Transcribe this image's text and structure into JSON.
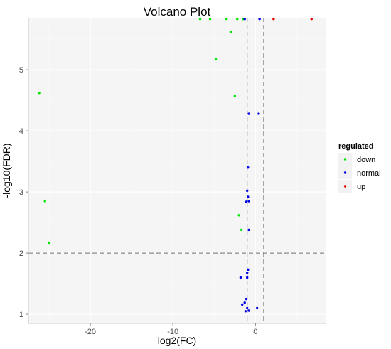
{
  "chart_data": {
    "type": "scatter",
    "title": "Volcano Plot",
    "xlabel": "log2(FC)",
    "ylabel": "-log10(FDR)",
    "xlim": [
      -27.5,
      8.5
    ],
    "ylim": [
      0.85,
      5.85
    ],
    "xticks": [
      -20,
      -10,
      0
    ],
    "yticks": [
      1,
      2,
      3,
      4,
      5
    ],
    "grid": true,
    "background": "#f5f5f5",
    "gridline_color": "#ffffff",
    "threshold_lines": {
      "x": [
        -1,
        1
      ],
      "y": 2
    },
    "legend": {
      "title": "regulated",
      "placement": "right",
      "entries": [
        "down",
        "normal",
        "up"
      ]
    },
    "series": [
      {
        "name": "down",
        "color": "#00e600",
        "points": [
          [
            -26.2,
            4.62
          ],
          [
            -25.5,
            2.85
          ],
          [
            -25,
            2.17
          ],
          [
            -6.7,
            5.83
          ],
          [
            -5.5,
            5.83
          ],
          [
            -3.5,
            5.83
          ],
          [
            -2.2,
            5.83
          ],
          [
            -1.5,
            5.83
          ],
          [
            -3,
            5.62
          ],
          [
            -4.8,
            5.17
          ],
          [
            -2.5,
            4.57
          ],
          [
            -2,
            2.62
          ],
          [
            -1.7,
            2.38
          ]
        ]
      },
      {
        "name": "normal",
        "color": "#0000e6",
        "points": [
          [
            -0.8,
            4.28
          ],
          [
            0.4,
            4.28
          ],
          [
            -0.9,
            3.4
          ],
          [
            -1,
            3.02
          ],
          [
            -0.9,
            2.92
          ],
          [
            -0.8,
            2.85
          ],
          [
            -1.1,
            2.84
          ],
          [
            -0.8,
            2.38
          ],
          [
            -0.9,
            1.73
          ],
          [
            -1,
            1.68
          ],
          [
            -1.8,
            1.6
          ],
          [
            -1,
            1.6
          ],
          [
            -1.1,
            1.25
          ],
          [
            -1.3,
            1.19
          ],
          [
            -1.6,
            1.16
          ],
          [
            -1,
            1.1
          ],
          [
            -0.8,
            1.06
          ],
          [
            -1.2,
            1.05
          ],
          [
            0.2,
            1.1
          ],
          [
            -1.3,
            5.83
          ],
          [
            0.5,
            5.83
          ]
        ]
      },
      {
        "name": "up",
        "color": "#e60000",
        "points": [
          [
            2.2,
            5.83
          ],
          [
            6.8,
            5.83
          ]
        ]
      }
    ]
  }
}
